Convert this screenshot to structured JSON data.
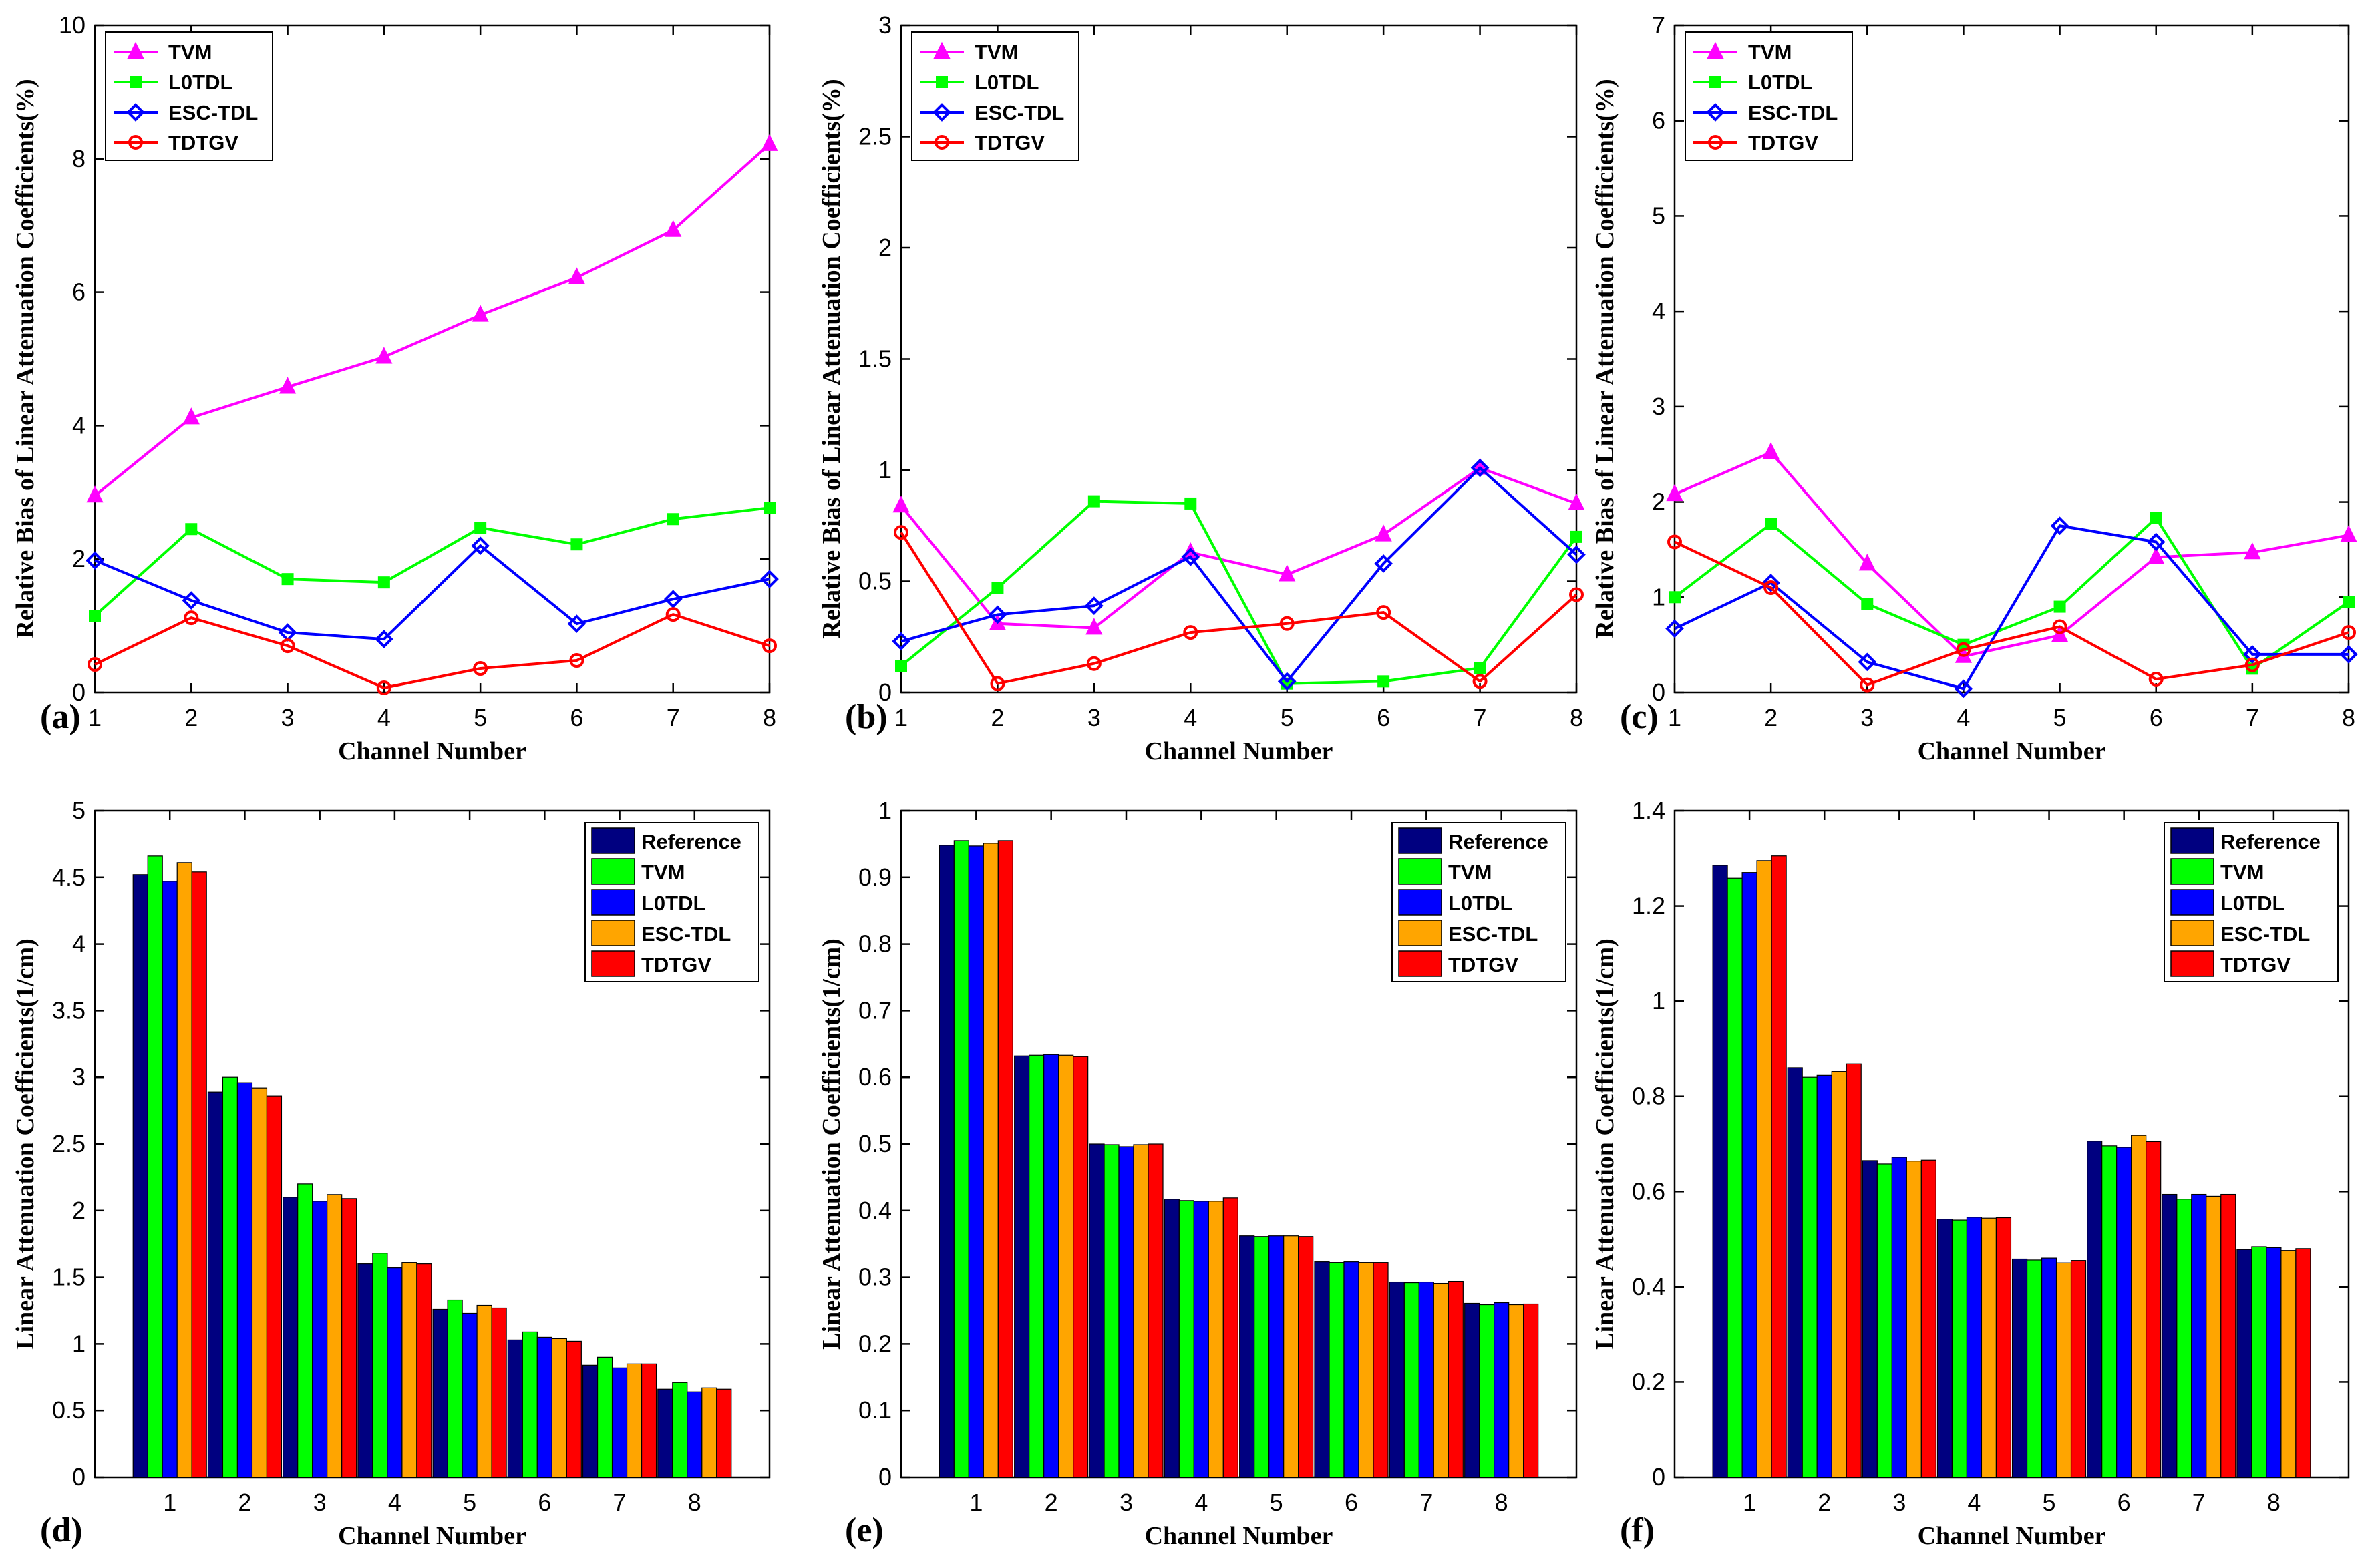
{
  "chart_data": [
    {
      "panel_label": "(a)",
      "type": "line",
      "xlabel": "Channel Number",
      "ylabel": "Relative Bias of Linear Attenuation Coefficients(%)",
      "x": [
        1,
        2,
        3,
        4,
        5,
        6,
        7,
        8
      ],
      "xlim": [
        1,
        8
      ],
      "ylim": [
        0,
        10
      ],
      "yticks": [
        0,
        2,
        4,
        6,
        8,
        10
      ],
      "yticklabels": [
        "0",
        "2",
        "4",
        "6",
        "8",
        "10"
      ],
      "legend_position": "top-left",
      "series": [
        {
          "name": "TVM",
          "color": "#ff00ff",
          "marker": "triangle",
          "values": [
            2.95,
            4.12,
            4.58,
            5.03,
            5.66,
            6.22,
            6.93,
            8.22
          ]
        },
        {
          "name": "L0TDL",
          "color": "#00ff00",
          "marker": "square",
          "values": [
            1.15,
            2.45,
            1.7,
            1.65,
            2.47,
            2.22,
            2.6,
            2.77
          ]
        },
        {
          "name": "ESC-TDL",
          "color": "#0000ff",
          "marker": "diamond",
          "values": [
            1.98,
            1.38,
            0.9,
            0.8,
            2.2,
            1.03,
            1.4,
            1.7
          ]
        },
        {
          "name": "TDTGV",
          "color": "#ff0000",
          "marker": "circle",
          "values": [
            0.42,
            1.12,
            0.7,
            0.07,
            0.36,
            0.48,
            1.17,
            0.7
          ]
        }
      ]
    },
    {
      "panel_label": "(b)",
      "type": "line",
      "xlabel": "Channel Number",
      "ylabel": "Relative Bias of Linear Attenuation Coefficients(%)",
      "x": [
        1,
        2,
        3,
        4,
        5,
        6,
        7,
        8
      ],
      "xlim": [
        1,
        8
      ],
      "ylim": [
        0,
        3
      ],
      "yticks": [
        0,
        0.5,
        1,
        1.5,
        2,
        2.5,
        3
      ],
      "yticklabels": [
        "0",
        "0.5",
        "1",
        "1.5",
        "2",
        "2.5",
        "3"
      ],
      "legend_position": "top-left",
      "series": [
        {
          "name": "TVM",
          "color": "#ff00ff",
          "marker": "triangle",
          "values": [
            0.84,
            0.31,
            0.29,
            0.63,
            0.53,
            0.71,
            1.01,
            0.85
          ]
        },
        {
          "name": "L0TDL",
          "color": "#00ff00",
          "marker": "square",
          "values": [
            0.12,
            0.47,
            0.86,
            0.85,
            0.04,
            0.05,
            0.11,
            0.7
          ]
        },
        {
          "name": "ESC-TDL",
          "color": "#0000ff",
          "marker": "diamond",
          "values": [
            0.23,
            0.35,
            0.39,
            0.61,
            0.05,
            0.58,
            1.01,
            0.62
          ]
        },
        {
          "name": "TDTGV",
          "color": "#ff0000",
          "marker": "circle",
          "values": [
            0.72,
            0.04,
            0.13,
            0.27,
            0.31,
            0.36,
            0.05,
            0.44
          ]
        }
      ]
    },
    {
      "panel_label": "(c)",
      "type": "line",
      "xlabel": "Channel Number",
      "ylabel": "Relative Bias of Linear Attenuation Coefficients(%)",
      "x": [
        1,
        2,
        3,
        4,
        5,
        6,
        7,
        8
      ],
      "xlim": [
        1,
        8
      ],
      "ylim": [
        0,
        7
      ],
      "yticks": [
        0,
        1,
        2,
        3,
        4,
        5,
        6,
        7
      ],
      "yticklabels": [
        "0",
        "1",
        "2",
        "3",
        "4",
        "5",
        "6",
        "7"
      ],
      "legend_position": "top-left",
      "series": [
        {
          "name": "TVM",
          "color": "#ff00ff",
          "marker": "triangle",
          "values": [
            2.08,
            2.52,
            1.35,
            0.38,
            0.6,
            1.42,
            1.47,
            1.65
          ]
        },
        {
          "name": "L0TDL",
          "color": "#00ff00",
          "marker": "square",
          "values": [
            1.0,
            1.77,
            0.93,
            0.5,
            0.9,
            1.83,
            0.25,
            0.95
          ]
        },
        {
          "name": "ESC-TDL",
          "color": "#0000ff",
          "marker": "diamond",
          "values": [
            0.67,
            1.15,
            0.32,
            0.04,
            1.75,
            1.58,
            0.4,
            0.4
          ]
        },
        {
          "name": "TDTGV",
          "color": "#ff0000",
          "marker": "circle",
          "values": [
            1.58,
            1.1,
            0.08,
            0.45,
            0.69,
            0.14,
            0.29,
            0.63
          ]
        }
      ]
    },
    {
      "panel_label": "(d)",
      "type": "bar",
      "xlabel": "Channel Number",
      "ylabel": "Linear Attenuation Coefficients(1/cm)",
      "categories": [
        "1",
        "2",
        "3",
        "4",
        "5",
        "6",
        "7",
        "8"
      ],
      "ylim": [
        0,
        5
      ],
      "yticks": [
        0,
        0.5,
        1,
        1.5,
        2,
        2.5,
        3,
        3.5,
        4,
        4.5,
        5
      ],
      "yticklabels": [
        "0",
        "0.5",
        "1",
        "1.5",
        "2",
        "2.5",
        "3",
        "3.5",
        "4",
        "4.5",
        "5"
      ],
      "legend_position": "top-right",
      "series": [
        {
          "name": "Reference",
          "color": "#000080",
          "values": [
            4.52,
            2.89,
            2.1,
            1.6,
            1.26,
            1.03,
            0.84,
            0.66
          ]
        },
        {
          "name": "TVM",
          "color": "#00ff00",
          "values": [
            4.66,
            3.0,
            2.2,
            1.68,
            1.33,
            1.09,
            0.9,
            0.71
          ]
        },
        {
          "name": "L0TDL",
          "color": "#0000ff",
          "values": [
            4.47,
            2.96,
            2.07,
            1.57,
            1.23,
            1.05,
            0.82,
            0.64
          ]
        },
        {
          "name": "ESC-TDL",
          "color": "#ffa500",
          "values": [
            4.61,
            2.92,
            2.12,
            1.61,
            1.29,
            1.04,
            0.85,
            0.67
          ]
        },
        {
          "name": "TDTGV",
          "color": "#ff0000",
          "values": [
            4.54,
            2.86,
            2.09,
            1.6,
            1.27,
            1.02,
            0.85,
            0.66
          ]
        }
      ]
    },
    {
      "panel_label": "(e)",
      "type": "bar",
      "xlabel": "Channel Number",
      "ylabel": "Linear Attenuation Coefficients(1/cm)",
      "categories": [
        "1",
        "2",
        "3",
        "4",
        "5",
        "6",
        "7",
        "8"
      ],
      "ylim": [
        0,
        1
      ],
      "yticks": [
        0,
        0.1,
        0.2,
        0.3,
        0.4,
        0.5,
        0.6,
        0.7,
        0.8,
        0.9,
        1
      ],
      "yticklabels": [
        "0",
        "0.1",
        "0.2",
        "0.3",
        "0.4",
        "0.5",
        "0.6",
        "0.7",
        "0.8",
        "0.9",
        "1"
      ],
      "legend_position": "top-right",
      "series": [
        {
          "name": "Reference",
          "color": "#000080",
          "values": [
            0.948,
            0.632,
            0.5,
            0.417,
            0.362,
            0.323,
            0.293,
            0.261
          ]
        },
        {
          "name": "TVM",
          "color": "#00ff00",
          "values": [
            0.955,
            0.633,
            0.499,
            0.415,
            0.361,
            0.322,
            0.292,
            0.259
          ]
        },
        {
          "name": "L0TDL",
          "color": "#0000ff",
          "values": [
            0.947,
            0.634,
            0.496,
            0.414,
            0.362,
            0.323,
            0.293,
            0.262
          ]
        },
        {
          "name": "ESC-TDL",
          "color": "#ffa500",
          "values": [
            0.951,
            0.633,
            0.499,
            0.414,
            0.362,
            0.322,
            0.291,
            0.259
          ]
        },
        {
          "name": "TDTGV",
          "color": "#ff0000",
          "values": [
            0.955,
            0.631,
            0.5,
            0.419,
            0.361,
            0.322,
            0.294,
            0.26
          ]
        }
      ]
    },
    {
      "panel_label": "(f)",
      "type": "bar",
      "xlabel": "Channel Number",
      "ylabel": "Linear Attenuation Coefficients(1/cm)",
      "categories": [
        "1",
        "2",
        "3",
        "4",
        "5",
        "6",
        "7",
        "8"
      ],
      "ylim": [
        0,
        1.4
      ],
      "yticks": [
        0,
        0.2,
        0.4,
        0.6,
        0.8,
        1,
        1.2,
        1.4
      ],
      "yticklabels": [
        "0",
        "0.2",
        "0.4",
        "0.6",
        "0.8",
        "1",
        "1.2",
        "1.4"
      ],
      "legend_position": "top-right",
      "series": [
        {
          "name": "Reference",
          "color": "#000080",
          "values": [
            1.285,
            0.86,
            0.665,
            0.542,
            0.458,
            0.706,
            0.594,
            0.478
          ]
        },
        {
          "name": "TVM",
          "color": "#00ff00",
          "values": [
            1.258,
            0.84,
            0.658,
            0.54,
            0.456,
            0.696,
            0.584,
            0.484
          ]
        },
        {
          "name": "L0TDL",
          "color": "#0000ff",
          "values": [
            1.27,
            0.844,
            0.672,
            0.546,
            0.46,
            0.693,
            0.594,
            0.482
          ]
        },
        {
          "name": "ESC-TDL",
          "color": "#ffa500",
          "values": [
            1.295,
            0.852,
            0.664,
            0.544,
            0.45,
            0.718,
            0.59,
            0.476
          ]
        },
        {
          "name": "TDTGV",
          "color": "#ff0000",
          "values": [
            1.305,
            0.868,
            0.666,
            0.545,
            0.455,
            0.705,
            0.594,
            0.48
          ]
        }
      ]
    }
  ]
}
